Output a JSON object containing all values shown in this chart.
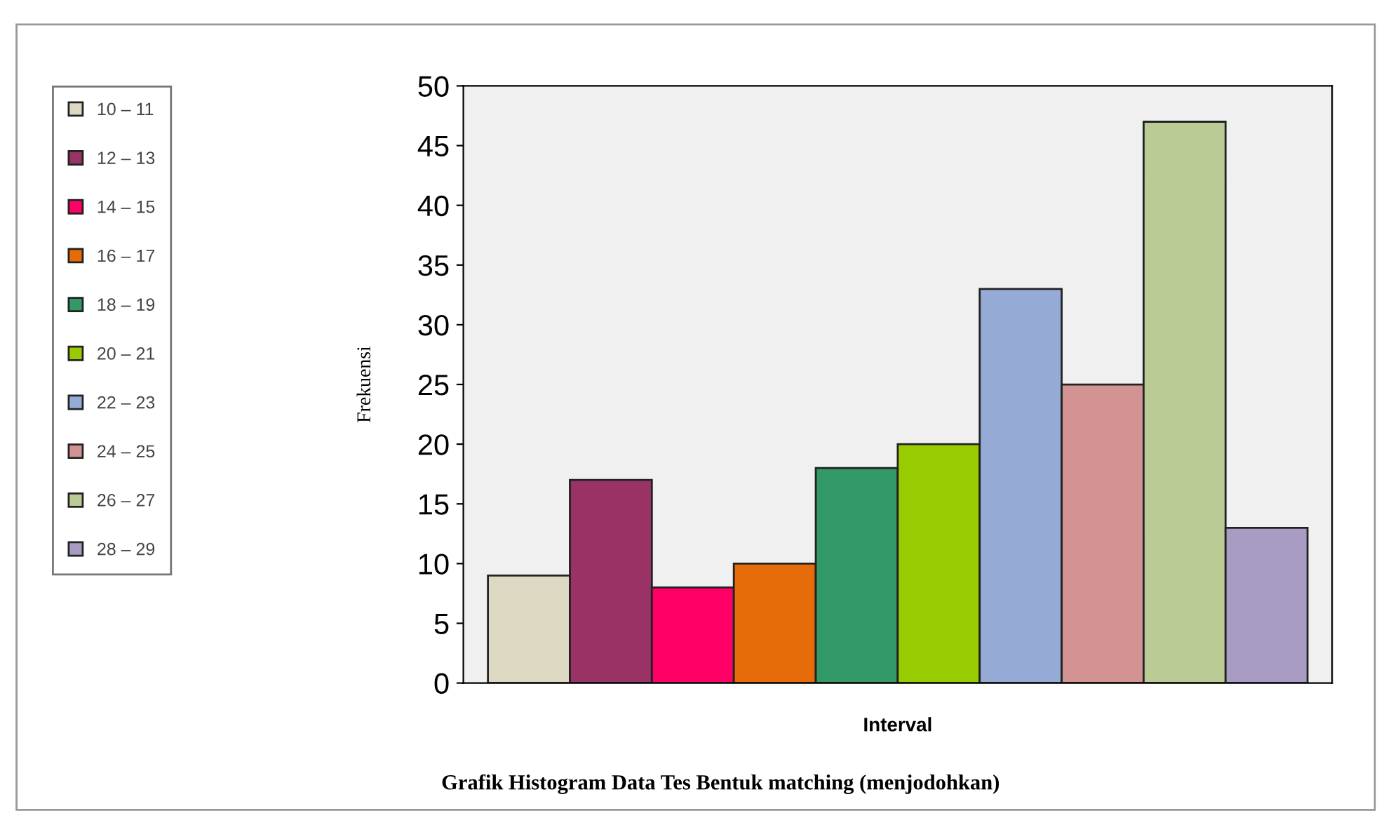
{
  "chart_data": {
    "type": "bar",
    "xlabel": "Interval",
    "ylabel": "Frekuensi",
    "annotations": [
      "Grafik Histogram Data Tes Bentuk matching (menjodohkan)"
    ],
    "categories": [
      null,
      null,
      null,
      null,
      null,
      null,
      null,
      null,
      null,
      null
    ],
    "ylim": [
      0,
      50
    ],
    "yticks": [
      0,
      5,
      10,
      15,
      20,
      25,
      30,
      35,
      40,
      45,
      50
    ],
    "grid": false,
    "legend": "left",
    "series": [
      {
        "name": "10 – 11",
        "color": "#ddd8c2",
        "values": [
          9,
          null,
          null,
          null,
          null,
          null,
          null,
          null,
          null,
          null
        ]
      },
      {
        "name": "12 – 13",
        "color": "#993366",
        "values": [
          null,
          17,
          null,
          null,
          null,
          null,
          null,
          null,
          null,
          null
        ]
      },
      {
        "name": "14 – 15",
        "color": "#ff0066",
        "values": [
          null,
          null,
          8,
          null,
          null,
          null,
          null,
          null,
          null,
          null
        ]
      },
      {
        "name": "16 – 17",
        "color": "#e66c0a",
        "values": [
          null,
          null,
          null,
          10,
          null,
          null,
          null,
          null,
          null,
          null
        ]
      },
      {
        "name": "18 – 19",
        "color": "#339966",
        "values": [
          null,
          null,
          null,
          null,
          18,
          null,
          null,
          null,
          null,
          null
        ]
      },
      {
        "name": "20 – 21",
        "color": "#99cc00",
        "values": [
          null,
          null,
          null,
          null,
          null,
          20,
          null,
          null,
          null,
          null
        ]
      },
      {
        "name": "22 – 23",
        "color": "#95aad4",
        "values": [
          null,
          null,
          null,
          null,
          null,
          null,
          33,
          null,
          null,
          null
        ]
      },
      {
        "name": "24 – 25",
        "color": "#d39393",
        "values": [
          null,
          null,
          null,
          null,
          null,
          null,
          null,
          25,
          null,
          null
        ]
      },
      {
        "name": "26 – 27",
        "color": "#bacb95",
        "values": [
          null,
          null,
          null,
          null,
          null,
          null,
          null,
          null,
          47,
          null
        ]
      },
      {
        "name": "28 – 29",
        "color": "#a99cc2",
        "values": [
          null,
          null,
          null,
          null,
          null,
          null,
          null,
          null,
          null,
          13
        ]
      }
    ]
  }
}
